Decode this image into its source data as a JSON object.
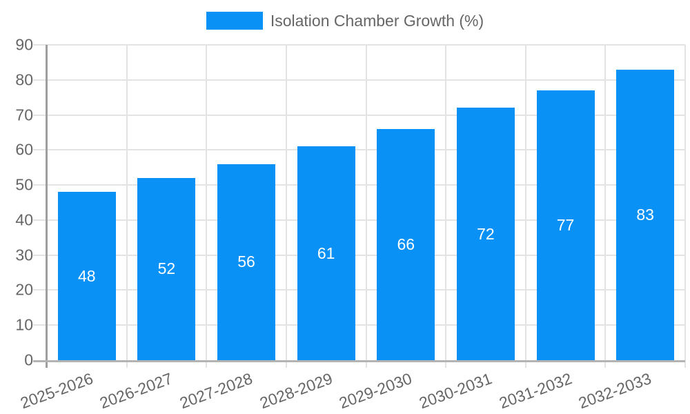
{
  "chart_data": {
    "type": "bar",
    "series_name": "Isolation Chamber Growth (%)",
    "categories": [
      "2025-2026",
      "2026-2027",
      "2027-2028",
      "2028-2029",
      "2029-2030",
      "2030-2031",
      "2031-2032",
      "2032-2033"
    ],
    "values": [
      48,
      52,
      56,
      61,
      66,
      72,
      77,
      83
    ],
    "ylim": [
      0,
      90
    ],
    "ytick_step": 10,
    "yticks": [
      0,
      10,
      20,
      30,
      40,
      50,
      60,
      70,
      80,
      90
    ],
    "legend_position": "top",
    "grid": true,
    "bar_labels_inside": true,
    "colors": {
      "bar": "#0991f6",
      "bar_label": "#ffffff",
      "tick_label": "#666666",
      "grid": "#e3e3e3",
      "y_axis": "#9e9e9e",
      "x_axis": "#b3b3b3",
      "background": "#ffffff"
    }
  }
}
